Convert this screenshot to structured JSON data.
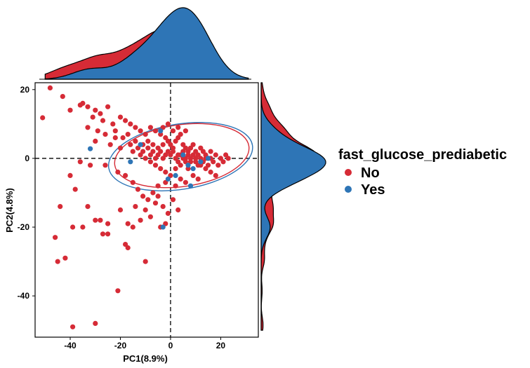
{
  "chart_data": {
    "type": "scatter",
    "xlabel": "PC1(8.9%)",
    "ylabel": "PC2(4.8%)",
    "xlim": [
      -54,
      35
    ],
    "ylim": [
      -52,
      22
    ],
    "xticks": [
      -40,
      -20,
      0,
      20
    ],
    "yticks": [
      20,
      0,
      -20,
      -40
    ],
    "reference_lines": {
      "x": 0,
      "y": 0,
      "style": "dashed"
    },
    "grid": false,
    "legend": {
      "title": "fast_glucose_prediabetic",
      "placement": "right",
      "entries": [
        "No",
        "Yes"
      ]
    },
    "marginal_density": {
      "top": "PC1",
      "right": "PC2"
    },
    "series": [
      {
        "name": "No",
        "color": "#D62B36",
        "ellipse": {
          "cx": 4.5,
          "cy": 0.8,
          "rx": 27,
          "ry": 9,
          "angle_deg": -8
        },
        "points": [
          [
            -48,
            20.5
          ],
          [
            -43,
            18
          ],
          [
            -51,
            11.8
          ],
          [
            -40,
            14
          ],
          [
            -36,
            15.5
          ],
          [
            -35,
            16
          ],
          [
            -33,
            15
          ],
          [
            -30,
            14
          ],
          [
            -28,
            13
          ],
          [
            -25,
            15
          ],
          [
            -31,
            12
          ],
          [
            -27,
            11
          ],
          [
            -23,
            10
          ],
          [
            -20,
            12
          ],
          [
            -18,
            11
          ],
          [
            -16,
            10
          ],
          [
            -33,
            9
          ],
          [
            -29,
            8
          ],
          [
            -26,
            7
          ],
          [
            -22,
            6
          ],
          [
            -14,
            9
          ],
          [
            -12,
            8
          ],
          [
            -10,
            7
          ],
          [
            -8,
            9
          ],
          [
            -6,
            8
          ],
          [
            -4,
            7
          ],
          [
            -2,
            6
          ],
          [
            -9,
            5
          ],
          [
            -7,
            4
          ],
          [
            -5,
            3
          ],
          [
            -3,
            4
          ],
          [
            -1,
            5
          ],
          [
            0,
            4
          ],
          [
            1,
            3
          ],
          [
            2,
            5
          ],
          [
            3,
            6
          ],
          [
            4,
            7
          ],
          [
            5,
            4
          ],
          [
            6,
            3
          ],
          [
            7,
            2
          ],
          [
            8,
            3
          ],
          [
            9,
            4
          ],
          [
            10,
            2
          ],
          [
            11,
            1
          ],
          [
            12,
            3
          ],
          [
            13,
            2
          ],
          [
            14,
            1
          ],
          [
            15,
            0
          ],
          [
            16,
            2
          ],
          [
            18,
            1
          ],
          [
            20,
            0
          ],
          [
            22,
            1
          ],
          [
            -30,
            5
          ],
          [
            -24,
            4
          ],
          [
            -20,
            3
          ],
          [
            -15,
            2
          ],
          [
            -12,
            1
          ],
          [
            -10,
            0
          ],
          [
            -8,
            -1
          ],
          [
            -6,
            -2
          ],
          [
            -4,
            -3
          ],
          [
            -2,
            -4
          ],
          [
            0,
            -5
          ],
          [
            2,
            -3
          ],
          [
            4,
            -2
          ],
          [
            6,
            -1
          ],
          [
            8,
            0
          ],
          [
            10,
            -1
          ],
          [
            12,
            -2
          ],
          [
            14,
            -3
          ],
          [
            16,
            -4
          ],
          [
            18,
            -5
          ],
          [
            3,
            1
          ],
          [
            5,
            0
          ],
          [
            7,
            -3
          ],
          [
            9,
            -5
          ],
          [
            11,
            -6
          ],
          [
            6,
            -7
          ],
          [
            4,
            -6
          ],
          [
            2,
            -8
          ],
          [
            -2,
            -7
          ],
          [
            -5,
            -8
          ],
          [
            -7,
            -10
          ],
          [
            -9,
            -12
          ],
          [
            -11,
            -11
          ],
          [
            -13,
            -9
          ],
          [
            -15,
            -7
          ],
          [
            -18,
            -5
          ],
          [
            -21,
            -4
          ],
          [
            -26,
            -2
          ],
          [
            -32,
            -2
          ],
          [
            -36,
            -1
          ],
          [
            -40,
            -5
          ],
          [
            -38,
            -9
          ],
          [
            -44,
            -14
          ],
          [
            -33,
            -14
          ],
          [
            -28,
            -18
          ],
          [
            -25,
            -22
          ],
          [
            -27,
            -22
          ],
          [
            -30,
            -18
          ],
          [
            -20,
            -15
          ],
          [
            -17,
            -19
          ],
          [
            -15,
            -20
          ],
          [
            -14,
            -14
          ],
          [
            -12,
            -18
          ],
          [
            -10,
            -15
          ],
          [
            -8,
            -17
          ],
          [
            -6,
            -13
          ],
          [
            -5,
            -11
          ],
          [
            -3,
            -14
          ],
          [
            -1,
            -16
          ],
          [
            -2,
            -19
          ],
          [
            -4,
            -20
          ],
          [
            1,
            -12
          ],
          [
            -42,
            -29
          ],
          [
            -45,
            -30
          ],
          [
            -46,
            -23
          ],
          [
            -18,
            -25
          ],
          [
            -17,
            -26
          ],
          [
            -10,
            -30
          ],
          [
            -21,
            -38.5
          ],
          [
            -39,
            -49
          ],
          [
            -30,
            -48
          ],
          [
            -25,
            -19
          ],
          [
            -35,
            -20
          ],
          [
            -39,
            -20
          ],
          [
            3,
            -15
          ],
          [
            0,
            1
          ],
          [
            1,
            2
          ],
          [
            2,
            0
          ],
          [
            3,
            -1
          ],
          [
            4,
            1
          ],
          [
            5,
            2
          ],
          [
            6,
            0
          ],
          [
            7,
            1
          ],
          [
            8,
            -1
          ],
          [
            9,
            1
          ],
          [
            10,
            0
          ],
          [
            11,
            -2
          ],
          [
            12,
            0
          ],
          [
            13,
            -1
          ],
          [
            14,
            0
          ],
          [
            15,
            -2
          ],
          [
            16,
            0
          ],
          [
            17,
            -1
          ],
          [
            19,
            -2
          ],
          [
            21,
            -1
          ],
          [
            23,
            0
          ],
          [
            -1,
            2
          ],
          [
            -2,
            1
          ],
          [
            -3,
            0
          ],
          [
            -4,
            2
          ],
          [
            -5,
            1
          ],
          [
            -6,
            0
          ],
          [
            -7,
            2
          ],
          [
            -8,
            1
          ],
          [
            -9,
            3
          ],
          [
            -11,
            2
          ],
          [
            -13,
            3
          ],
          [
            -16,
            4
          ],
          [
            -19,
            6
          ],
          [
            -22,
            8
          ],
          [
            -17,
            7
          ],
          [
            -14,
            5
          ],
          [
            -11,
            4
          ],
          [
            1,
            8
          ],
          [
            3,
            9
          ],
          [
            6,
            8
          ],
          [
            -1,
            10
          ],
          [
            -3,
            9
          ]
        ]
      },
      {
        "name": "Yes",
        "color": "#2E75B6",
        "ellipse": {
          "cx": 4.0,
          "cy": 0.5,
          "rx": 29,
          "ry": 9.5,
          "angle_deg": -9
        },
        "points": [
          [
            -32,
            2.8
          ],
          [
            -16,
            -1
          ],
          [
            -4,
            8
          ],
          [
            -3,
            -20
          ],
          [
            -1,
            -6
          ],
          [
            2,
            -5
          ],
          [
            5,
            1
          ],
          [
            7,
            -2
          ],
          [
            9,
            -3
          ],
          [
            12,
            -1
          ],
          [
            8,
            -8
          ],
          [
            -12,
            4
          ],
          [
            15,
            0
          ]
        ]
      }
    ]
  }
}
